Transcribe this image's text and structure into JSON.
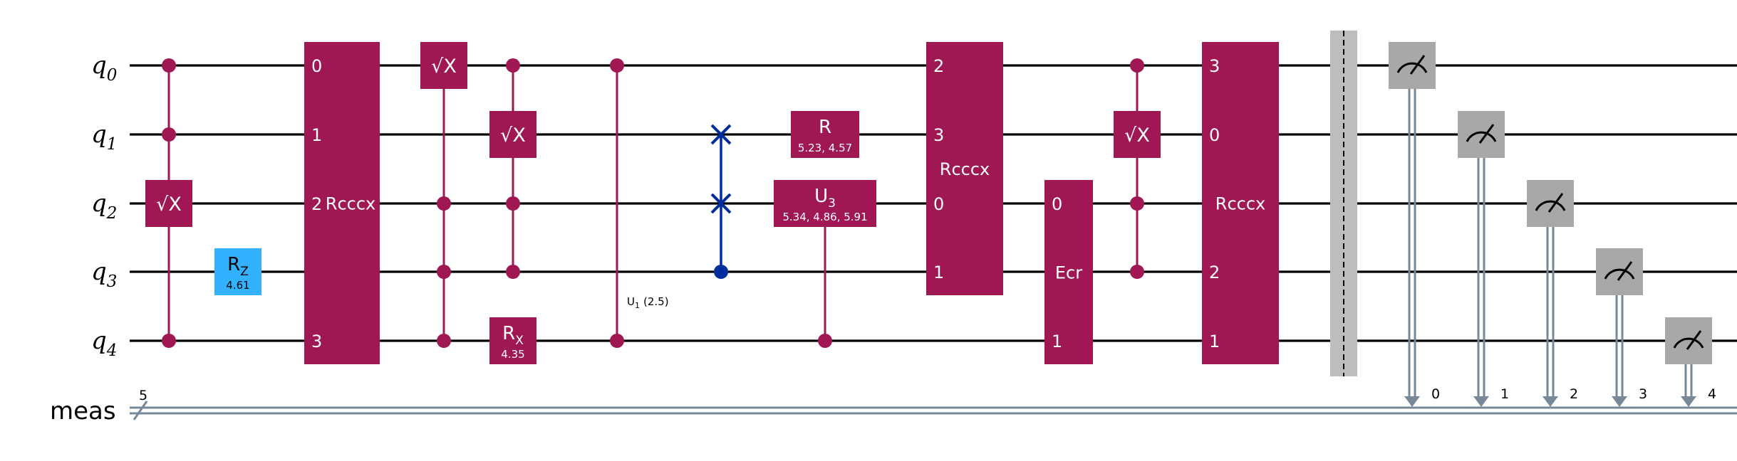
{
  "colors": {
    "wire": "#000000",
    "gate": "#9f1853",
    "rz": "#33b1ff",
    "swap": "#002d9c",
    "measure": "#a8a8a8",
    "classical": "#778899",
    "barrier": "#bdbdbd"
  },
  "qubits": [
    {
      "name": "q",
      "index": "0"
    },
    {
      "name": "q",
      "index": "1"
    },
    {
      "name": "q",
      "index": "2"
    },
    {
      "name": "q",
      "index": "3"
    },
    {
      "name": "q",
      "index": "4"
    }
  ],
  "classical": {
    "name": "meas",
    "width": "5"
  },
  "gates": [
    {
      "id": "csx-0",
      "kind": "controlled-box",
      "controls": [
        0,
        1,
        4
      ],
      "targets": [
        2
      ],
      "label": "√X"
    },
    {
      "id": "rz-0",
      "kind": "box",
      "targets": [
        3
      ],
      "label": "R",
      "subscript": "Z",
      "param": "4.61",
      "style": "rz"
    },
    {
      "id": "rcccx-0",
      "kind": "multi-box",
      "targets": [
        0,
        1,
        2,
        4
      ],
      "label": "Rcccx",
      "ports": [
        "0",
        "1",
        "2",
        "3"
      ]
    },
    {
      "id": "csx-1",
      "kind": "controlled-box",
      "controls": [
        2,
        3,
        4
      ],
      "targets": [
        0
      ],
      "label": "√X"
    },
    {
      "id": "csx-2",
      "kind": "controlled-box",
      "controls": [
        0,
        2,
        3
      ],
      "targets": [
        1
      ],
      "label": "√X"
    },
    {
      "id": "rx-0",
      "kind": "box",
      "targets": [
        4
      ],
      "label": "R",
      "subscript": "X",
      "param": "4.35"
    },
    {
      "id": "cu1-0",
      "kind": "cphase",
      "controls": [
        0,
        4
      ],
      "label": "U",
      "subscript": "1",
      "param": "(2.5)"
    },
    {
      "id": "cswap-0",
      "kind": "cswap",
      "controls": [
        3
      ],
      "targets": [
        1,
        2
      ]
    },
    {
      "id": "r-0",
      "kind": "box",
      "targets": [
        1
      ],
      "label": "R",
      "param": "5.23, 4.57"
    },
    {
      "id": "cu3-0",
      "kind": "controlled-box",
      "controls": [
        4
      ],
      "targets": [
        2
      ],
      "label": "U",
      "subscript": "3",
      "param": "5.34, 4.86, 5.91"
    },
    {
      "id": "rcccx-1",
      "kind": "multi-box",
      "targets": [
        0,
        1,
        2,
        3
      ],
      "label": "Rcccx",
      "ports": [
        "2",
        "3",
        "0",
        "1"
      ]
    },
    {
      "id": "ecr-0",
      "kind": "multi-box",
      "targets": [
        2,
        4
      ],
      "label": "Ecr",
      "ports": [
        "0",
        "1"
      ]
    },
    {
      "id": "csx-3",
      "kind": "controlled-box",
      "controls": [
        0,
        2,
        3
      ],
      "targets": [
        1
      ],
      "label": "√X"
    },
    {
      "id": "rcccx-2",
      "kind": "multi-box",
      "targets": [
        0,
        1,
        2,
        3,
        4
      ],
      "label": "Rcccx",
      "ports": [
        "3",
        "0",
        "",
        "2",
        "1"
      ]
    },
    {
      "id": "barrier-0",
      "kind": "barrier",
      "targets": [
        0,
        1,
        2,
        3,
        4
      ]
    },
    {
      "id": "measure-0",
      "kind": "measure",
      "qubit": 0,
      "bit": "0"
    },
    {
      "id": "measure-1",
      "kind": "measure",
      "qubit": 1,
      "bit": "1"
    },
    {
      "id": "measure-2",
      "kind": "measure",
      "qubit": 2,
      "bit": "2"
    },
    {
      "id": "measure-3",
      "kind": "measure",
      "qubit": 3,
      "bit": "3"
    },
    {
      "id": "measure-4",
      "kind": "measure",
      "qubit": 4,
      "bit": "4"
    }
  ]
}
